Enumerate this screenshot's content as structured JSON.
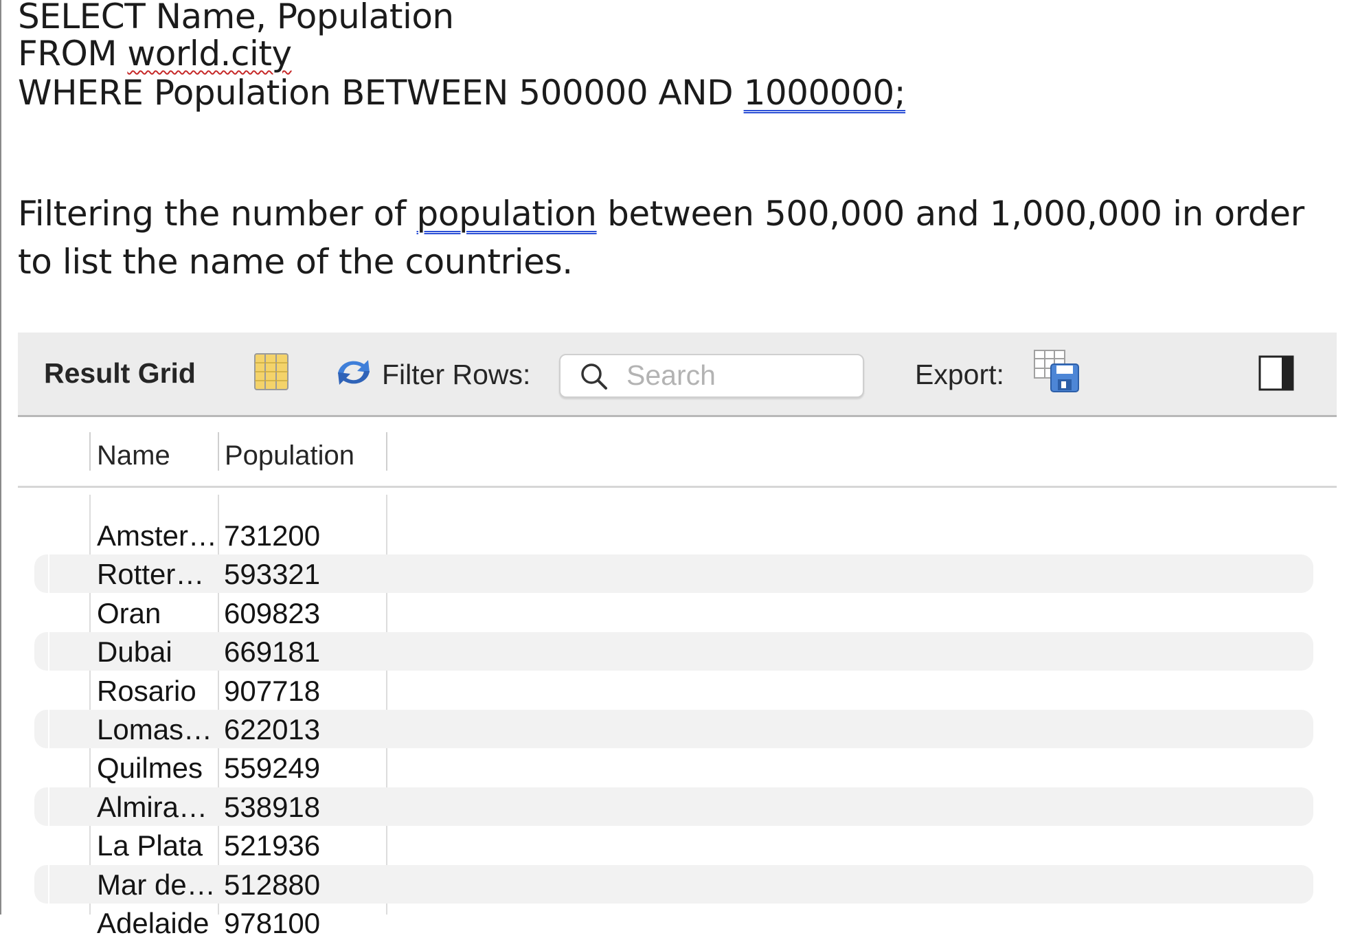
{
  "document": {
    "sql_lines": [
      {
        "before": "SELECT Name, Population",
        "marked": "",
        "after": ""
      },
      {
        "before": "FROM ",
        "marked": "world.city",
        "after": ""
      },
      {
        "before": "WHERE Population BETWEEN 500000 AND ",
        "marked": "1000000;",
        "after": ""
      }
    ],
    "description": {
      "before": "Filtering the number of ",
      "marked": "population",
      "after": " between 500,000 and 1,000,000 in order to list the name of the countries."
    }
  },
  "toolbar": {
    "title": "Result Grid",
    "grid_icon": "grid-view-icon",
    "refresh_icon": "refresh-icon",
    "filter_label": "Filter Rows:",
    "search_placeholder": "Search",
    "search_value": "",
    "export_label": "Export:",
    "export_icon": "export-save-icon",
    "panel_icon": "panel-toggle-icon"
  },
  "table": {
    "columns": [
      "Name",
      "Population"
    ],
    "rows": [
      {
        "name": "Amster…",
        "population": "731200"
      },
      {
        "name": "Rotter…",
        "population": "593321"
      },
      {
        "name": "Oran",
        "population": "609823"
      },
      {
        "name": "Dubai",
        "population": "669181"
      },
      {
        "name": "Rosario",
        "population": "907718"
      },
      {
        "name": "Lomas…",
        "population": "622013"
      },
      {
        "name": "Quilmes",
        "population": "559249"
      },
      {
        "name": "Almira…",
        "population": "538918"
      },
      {
        "name": "La Plata",
        "population": "521936"
      },
      {
        "name": "Mar de…",
        "population": "512880"
      },
      {
        "name": "Adelaide",
        "population": "978100"
      }
    ]
  },
  "colors": {
    "toolbar_bg": "#ececec",
    "alt_row_bg": "#f2f2f2",
    "spell_error": "#c62828",
    "grammar_mark": "#2b4fd6"
  }
}
